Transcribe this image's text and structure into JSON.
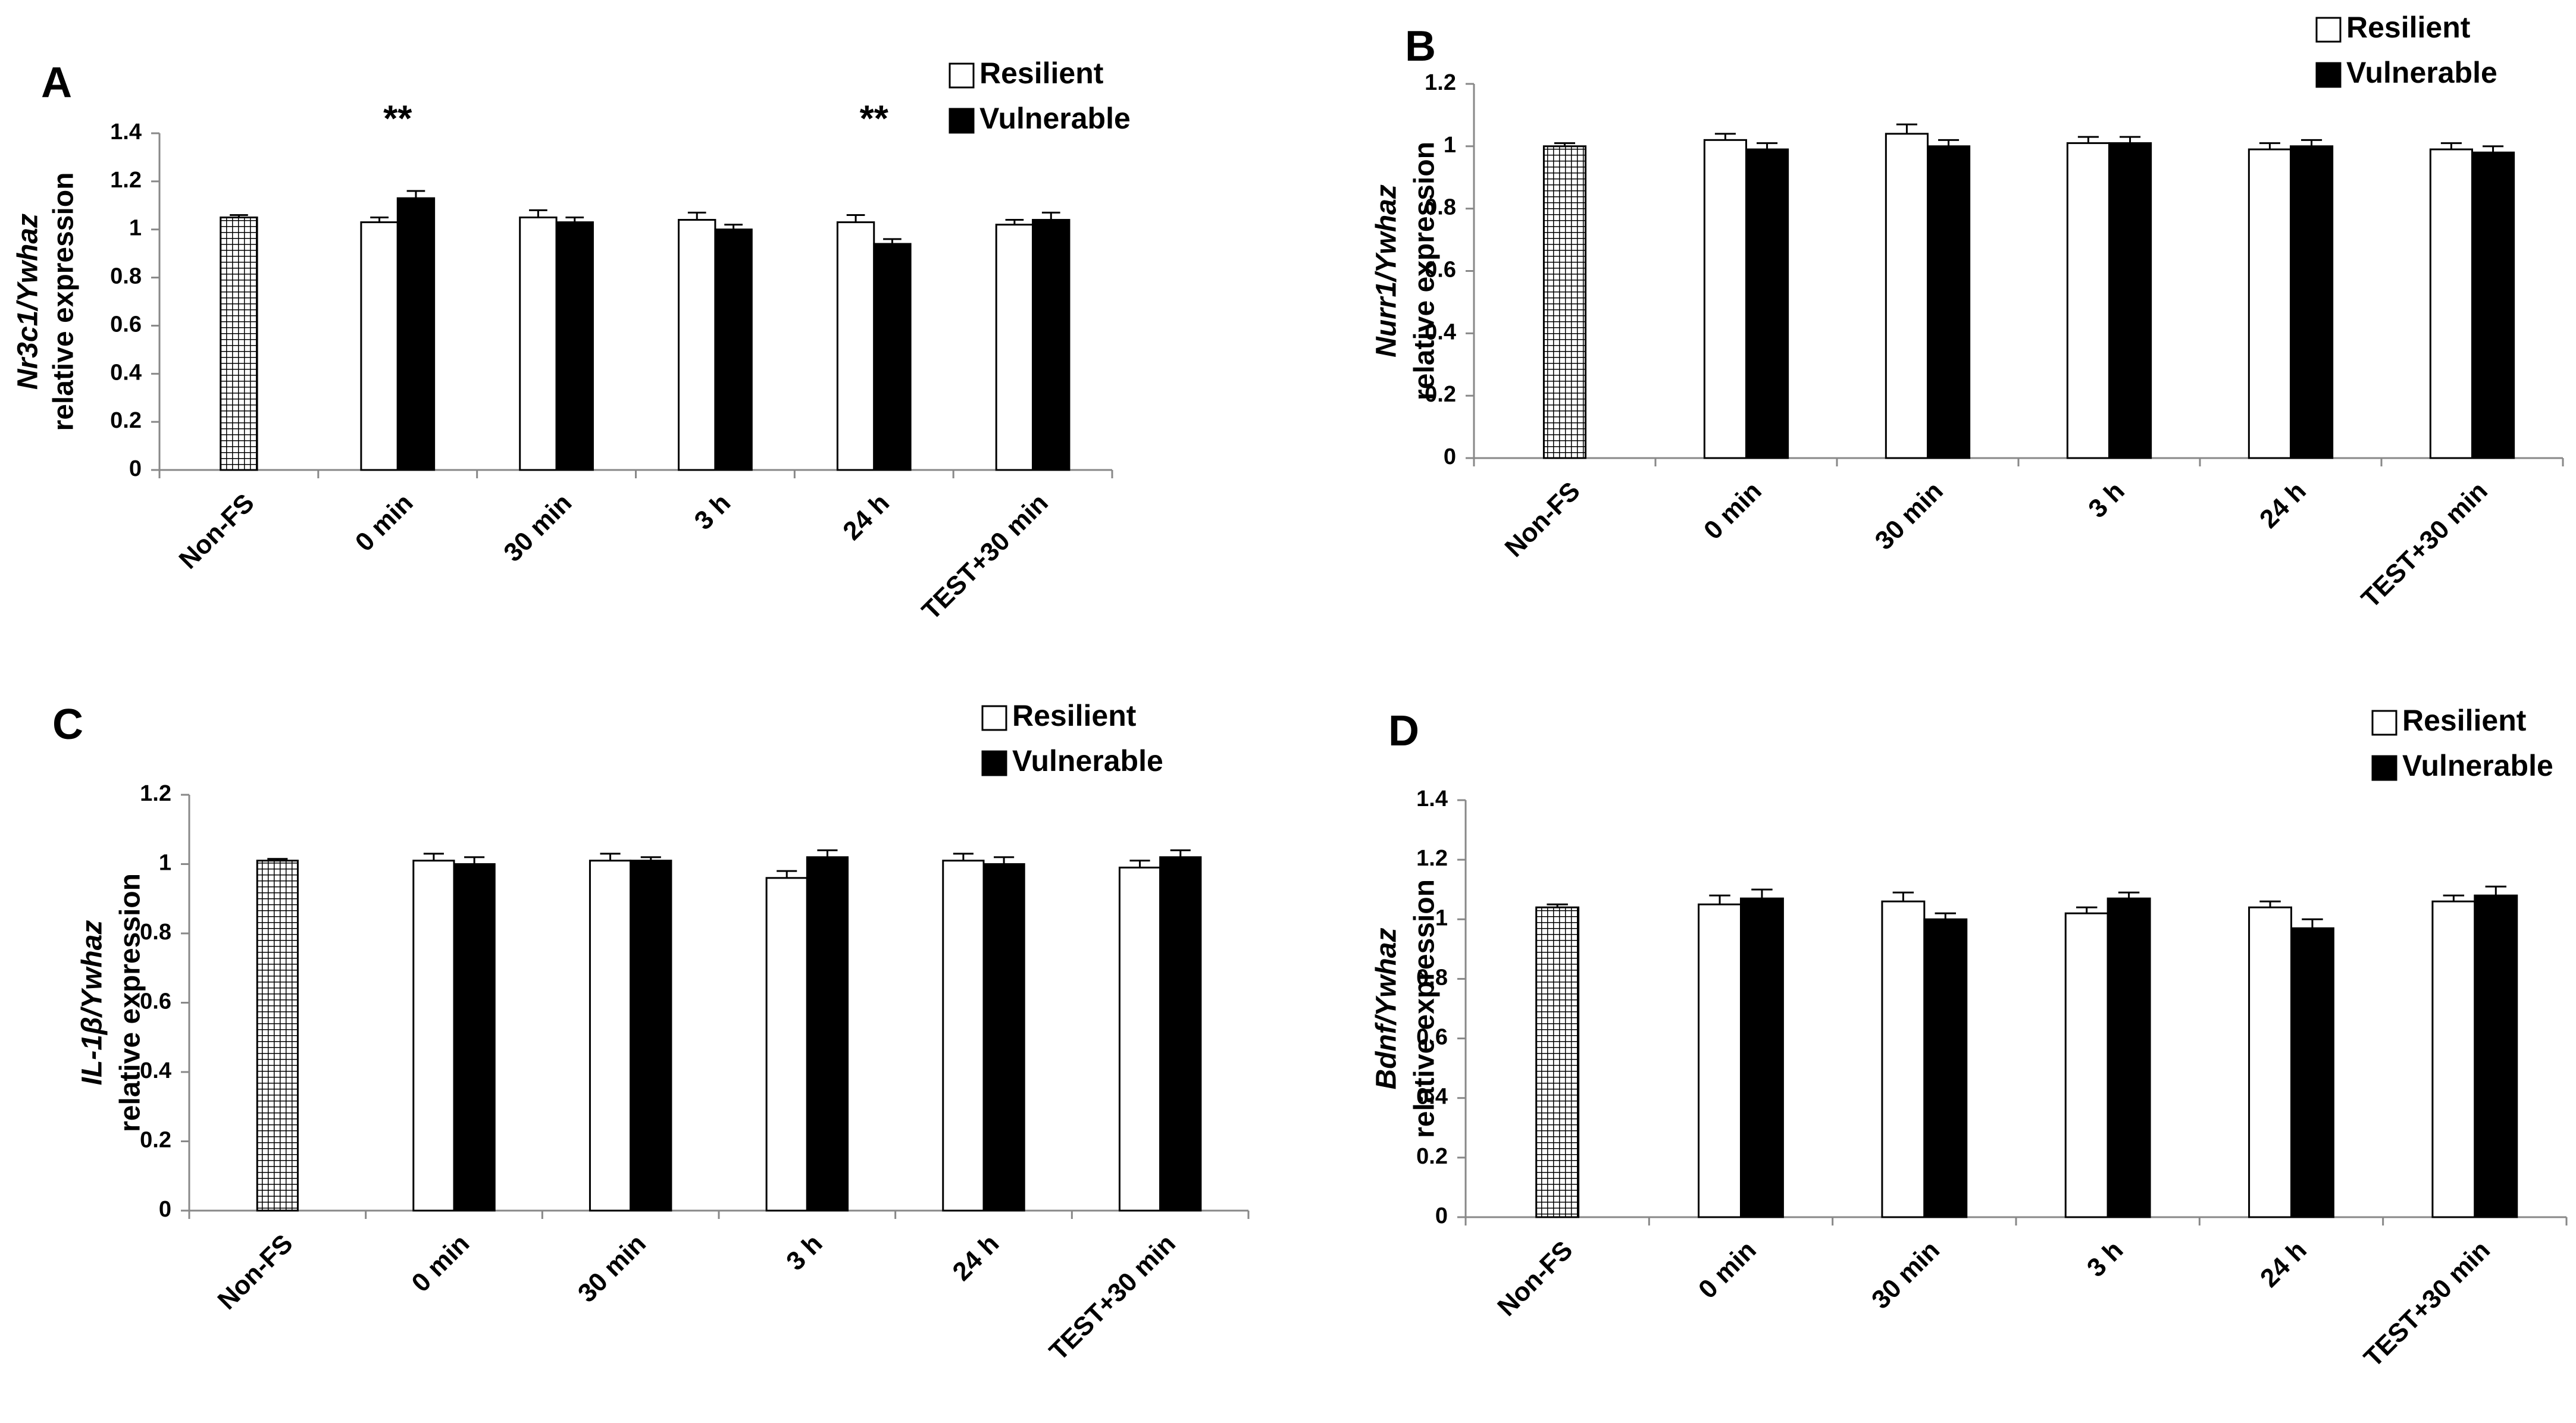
{
  "chart_data": [
    {
      "type": "bar",
      "panel": "A",
      "ylabel": [
        "Nr3c1/Ywhaz",
        "relative expression"
      ],
      "categories": [
        "Non-FS",
        "0 min",
        "30 min",
        "3 h",
        "24 h",
        "TEST+30 min"
      ],
      "series": [
        {
          "name": "Resilient",
          "color": "#ffffff",
          "values": [
            1.05,
            1.03,
            1.05,
            1.04,
            1.03,
            1.02
          ],
          "errors": [
            0.01,
            0.02,
            0.03,
            0.03,
            0.03,
            0.02
          ]
        },
        {
          "name": "Vulnerable",
          "color": "#000000",
          "values": [
            null,
            1.13,
            1.03,
            1.0,
            0.94,
            1.04
          ],
          "errors": [
            null,
            0.03,
            0.02,
            0.02,
            0.02,
            0.03
          ]
        }
      ],
      "significance": [
        null,
        "**",
        null,
        null,
        "**",
        null
      ],
      "ylim": [
        0,
        1.4
      ],
      "yticks": [
        0,
        0.2,
        0.4,
        0.6,
        0.8,
        1,
        1.2,
        1.4
      ]
    },
    {
      "type": "bar",
      "panel": "B",
      "ylabel": [
        "Nurr1/Ywhaz",
        "relative expression"
      ],
      "categories": [
        "Non-FS",
        "0 min",
        "30 min",
        "3 h",
        "24 h",
        "TEST+30 min"
      ],
      "series": [
        {
          "name": "Resilient",
          "color": "#ffffff",
          "values": [
            1.0,
            1.02,
            1.04,
            1.01,
            0.99,
            0.99
          ],
          "errors": [
            0.01,
            0.02,
            0.03,
            0.02,
            0.02,
            0.02
          ]
        },
        {
          "name": "Vulnerable",
          "color": "#000000",
          "values": [
            null,
            0.99,
            1.0,
            1.01,
            1.0,
            0.98
          ],
          "errors": [
            null,
            0.02,
            0.02,
            0.02,
            0.02,
            0.02
          ]
        }
      ],
      "significance": [
        null,
        null,
        null,
        null,
        null,
        null
      ],
      "ylim": [
        0,
        1.2
      ],
      "yticks": [
        0,
        0.2,
        0.4,
        0.6,
        0.8,
        1,
        1.2
      ]
    },
    {
      "type": "bar",
      "panel": "C",
      "ylabel": [
        "IL-1β/Ywhaz",
        "relative expression"
      ],
      "categories": [
        "Non-FS",
        "0 min",
        "30 min",
        "3 h",
        "24 h",
        "TEST+30 min"
      ],
      "series": [
        {
          "name": "Resilient",
          "color": "#ffffff",
          "values": [
            1.01,
            1.01,
            1.01,
            0.96,
            1.01,
            0.99
          ],
          "errors": [
            0.005,
            0.02,
            0.02,
            0.02,
            0.02,
            0.02
          ]
        },
        {
          "name": "Vulnerable",
          "color": "#000000",
          "values": [
            null,
            1.0,
            1.01,
            1.02,
            1.0,
            1.02
          ],
          "errors": [
            null,
            0.02,
            0.01,
            0.02,
            0.02,
            0.02
          ]
        }
      ],
      "significance": [
        null,
        null,
        null,
        null,
        null,
        null
      ],
      "ylim": [
        0,
        1.2
      ],
      "yticks": [
        0,
        0.2,
        0.4,
        0.6,
        0.8,
        1,
        1.2
      ]
    },
    {
      "type": "bar",
      "panel": "D",
      "ylabel": [
        "Bdnf/Ywhaz",
        "relative expression"
      ],
      "categories": [
        "Non-FS",
        "0 min",
        "30 min",
        "3 h",
        "24 h",
        "TEST+30 min"
      ],
      "series": [
        {
          "name": "Resilient",
          "color": "#ffffff",
          "values": [
            1.04,
            1.05,
            1.06,
            1.02,
            1.04,
            1.06
          ],
          "errors": [
            0.01,
            0.03,
            0.03,
            0.02,
            0.02,
            0.02
          ]
        },
        {
          "name": "Vulnerable",
          "color": "#000000",
          "values": [
            null,
            1.07,
            1.0,
            1.07,
            0.97,
            1.08
          ],
          "errors": [
            null,
            0.03,
            0.02,
            0.02,
            0.03,
            0.03
          ]
        }
      ],
      "significance": [
        null,
        null,
        null,
        null,
        null,
        null
      ],
      "ylim": [
        0,
        1.4
      ],
      "yticks": [
        0,
        0.2,
        0.4,
        0.6,
        0.8,
        1,
        1.2,
        1.4
      ]
    }
  ]
}
